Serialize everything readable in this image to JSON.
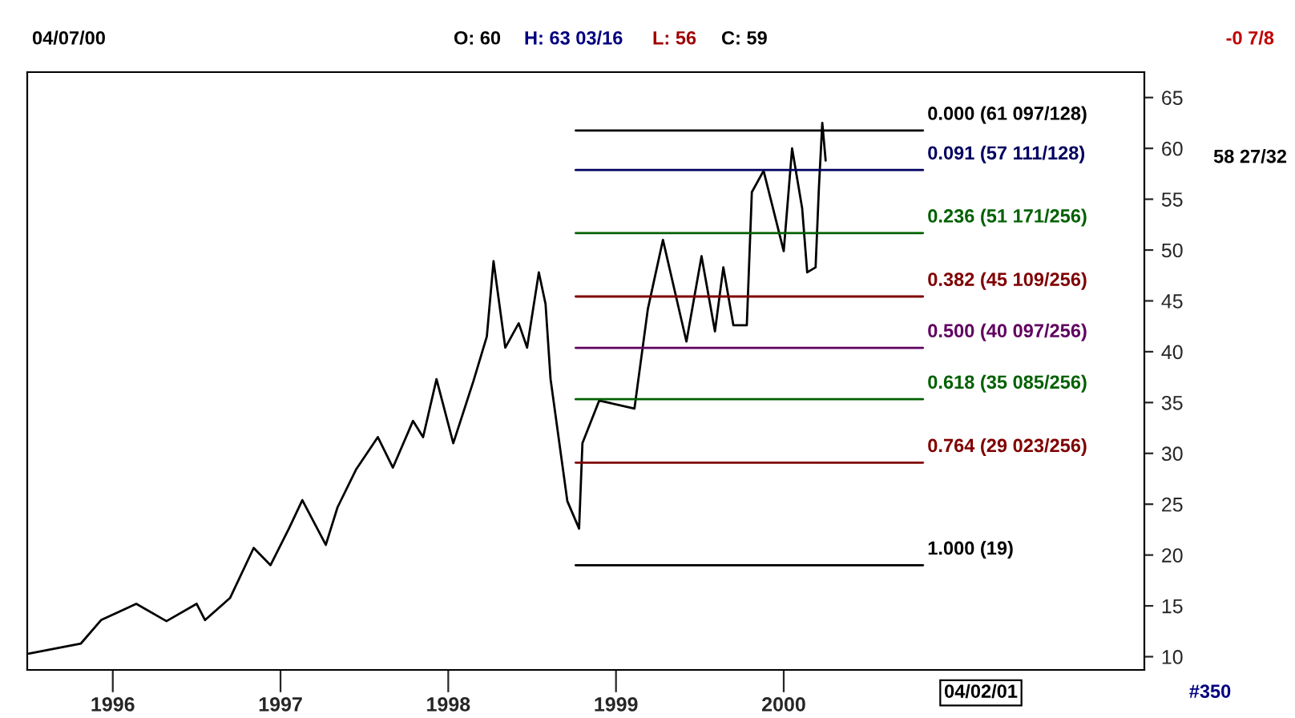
{
  "chart_data": {
    "type": "line",
    "xlim": [
      1995.49,
      2002.15
    ],
    "ylim": [
      8.7,
      67.5
    ],
    "xticks": [
      1996,
      1997,
      1998,
      1999,
      2000
    ],
    "yticks": [
      10,
      15,
      20,
      25,
      30,
      35,
      40,
      45,
      50,
      55,
      60,
      65
    ],
    "grid": false,
    "legend": false,
    "marker": "none",
    "line_style": "solid",
    "series": [
      {
        "color": "#000000",
        "x": [
          1995.5,
          1995.81,
          1995.93,
          1996.14,
          1996.32,
          1996.5,
          1996.55,
          1996.7,
          1996.84,
          1996.94,
          1997.05,
          1997.13,
          1997.27,
          1997.34,
          1997.45,
          1997.58,
          1997.67,
          1997.79,
          1997.85,
          1997.93,
          1998.03,
          1998.15,
          1998.23,
          1998.27,
          1998.34,
          1998.42,
          1998.47,
          1998.54,
          1998.58,
          1998.61,
          1998.68,
          1998.71,
          1998.78,
          1998.8,
          1998.9,
          1999.11,
          1999.19,
          1999.28,
          1999.42,
          1999.51,
          1999.59,
          1999.64,
          1999.7,
          1999.78,
          1999.81,
          1999.88,
          2000.0,
          2000.05,
          2000.11,
          2000.14,
          2000.19,
          2000.21,
          2000.23,
          2000.25
        ],
        "values": [
          10.3,
          11.3,
          13.6,
          15.2,
          13.5,
          15.2,
          13.6,
          15.8,
          20.7,
          19.0,
          22.6,
          25.4,
          21.0,
          24.7,
          28.4,
          31.6,
          28.6,
          33.2,
          31.6,
          37.3,
          31.0,
          37.1,
          41.5,
          48.9,
          40.4,
          42.8,
          40.4,
          47.8,
          44.7,
          37.3,
          28.9,
          25.3,
          22.6,
          31.0,
          35.2,
          34.4,
          44.2,
          51.0,
          41.0,
          49.4,
          42.0,
          48.3,
          42.6,
          42.6,
          55.7,
          57.8,
          49.9,
          60.0,
          54.1,
          47.8,
          48.3,
          56.2,
          62.5,
          58.8
        ]
      },
      {
        "name": "0.000 (61 097/128)",
        "color": "#000000",
        "x": [
          1998.76,
          2000.83
        ],
        "values": [
          61.76,
          61.76
        ]
      },
      {
        "name": "0.091 (57 111/128)",
        "color": "#000060",
        "x": [
          1998.76,
          2000.83
        ],
        "values": [
          57.87,
          57.87
        ]
      },
      {
        "name": "0.236 (51 171/256)",
        "color": "#006000",
        "x": [
          1998.76,
          2000.83
        ],
        "values": [
          51.67,
          51.67
        ]
      },
      {
        "name": "0.382 (45 109/256)",
        "color": "#800000",
        "x": [
          1998.76,
          2000.83
        ],
        "values": [
          45.43,
          45.43
        ]
      },
      {
        "name": "0.500 (40 097/256)",
        "color": "#600060",
        "x": [
          1998.76,
          2000.83
        ],
        "values": [
          40.38,
          40.38
        ]
      },
      {
        "name": "0.618 (35 085/256)",
        "color": "#006000",
        "x": [
          1998.76,
          2000.83
        ],
        "values": [
          35.33,
          35.33
        ]
      },
      {
        "name": "0.764 (29 023/256)",
        "color": "#800000",
        "x": [
          1998.76,
          2000.83
        ],
        "values": [
          29.09,
          29.09
        ]
      },
      {
        "name": "1.000 (19)",
        "color": "#000000",
        "x": [
          1998.76,
          2000.83
        ],
        "values": [
          19,
          19
        ]
      }
    ],
    "annotations": [
      "04/07/00",
      "O: 60",
      "H: 63 03/16",
      "L: 56",
      "C: 59",
      "-0 7/8",
      "58 27/32",
      "04/02/01",
      "#350"
    ]
  }
}
